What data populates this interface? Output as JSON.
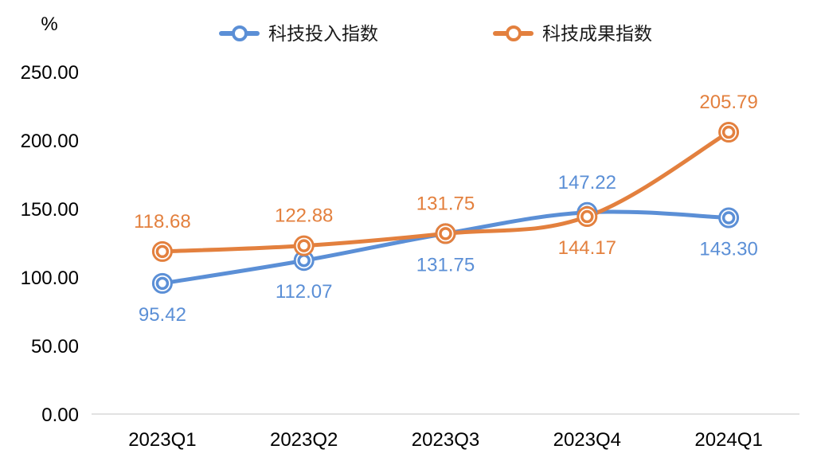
{
  "chart_data": {
    "type": "line",
    "smooth": true,
    "y_unit": "%",
    "categories": [
      "2023Q1",
      "2023Q2",
      "2023Q3",
      "2023Q4",
      "2024Q1"
    ],
    "series": [
      {
        "name": "科技投入指数",
        "color": "#5b8fd6",
        "values": [
          95.42,
          112.07,
          131.75,
          147.22,
          143.3
        ],
        "labels": [
          "95.42",
          "112.07",
          "131.75",
          "147.22",
          "143.30"
        ],
        "label_positions": [
          "below",
          "below",
          "below",
          "above",
          "below"
        ]
      },
      {
        "name": "科技成果指数",
        "color": "#e3803e",
        "values": [
          118.68,
          122.88,
          131.75,
          144.17,
          205.79
        ],
        "labels": [
          "118.68",
          "122.88",
          "131.75",
          "144.17",
          "205.79"
        ],
        "label_positions": [
          "above",
          "above",
          "above",
          "below",
          "above"
        ]
      }
    ],
    "ylim": [
      0,
      250
    ],
    "yticks": [
      "0.00",
      "50.00",
      "100.00",
      "150.00",
      "200.00",
      "250.00"
    ],
    "ytick_values": [
      0,
      50,
      100,
      150,
      200,
      250
    ],
    "grid": false,
    "legend_position": "top-center",
    "axis_color": "#d9d9d9"
  }
}
